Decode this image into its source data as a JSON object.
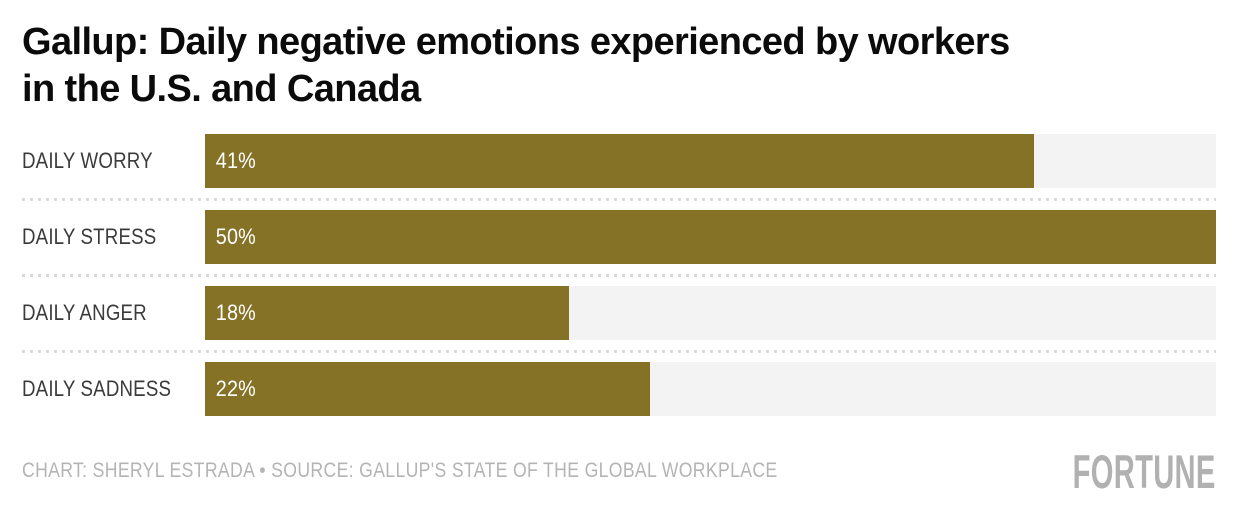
{
  "title": "Gallup: Daily negative emotions experienced by workers in the U.S. and Canada",
  "title_lines": [
    "Gallup: Daily negative emotions experienced by workers",
    "in the U.S. and Canada"
  ],
  "chart_data": {
    "type": "bar",
    "orientation": "horizontal",
    "title": "Gallup: Daily negative emotions experienced by workers in the U.S. and Canada",
    "categories": [
      "DAILY WORRY",
      "DAILY STRESS",
      "DAILY ANGER",
      "DAILY SADNESS"
    ],
    "values": [
      41,
      50,
      18,
      22
    ],
    "value_labels": [
      "41%",
      "50%",
      "18%",
      "22%"
    ],
    "xlim": [
      0,
      50
    ],
    "grid": false,
    "legend": false,
    "bar_color": "#867227",
    "track_color": "#f3f3f3",
    "separator_style": "dotted"
  },
  "footer": {
    "credit": "CHART: SHERYL ESTRADA • SOURCE: GALLUP'S STATE OF THE GLOBAL WORKPLACE",
    "brand": "FORTUNE"
  },
  "colors": {
    "bar": "#867227",
    "track": "#f3f3f3",
    "title_text": "#0b0b0b",
    "label_text": "#3b3b3b",
    "value_text": "#ffffff",
    "separator": "#d9d9d9",
    "footer_text": "#b4b4b4",
    "brand_text": "#b1b1b1",
    "background": "#ffffff"
  }
}
